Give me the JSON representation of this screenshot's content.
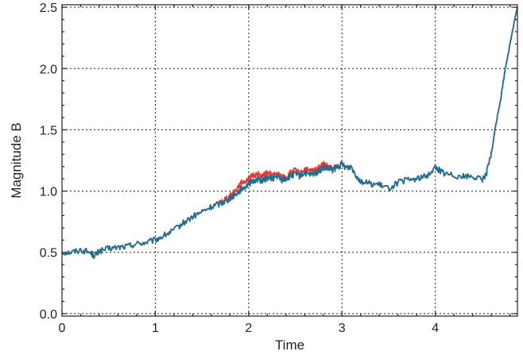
{
  "chart_data": {
    "type": "line",
    "title": "",
    "xlabel": "Time",
    "ylabel": "Magnitude B",
    "xlim": [
      0,
      4.88
    ],
    "ylim": [
      -0.02,
      2.52
    ],
    "x_ticks": [
      0,
      1,
      2,
      3,
      4
    ],
    "x_tick_labels": [
      "0",
      "1",
      "2",
      "3",
      "4"
    ],
    "y_ticks": [
      0.0,
      0.5,
      1.0,
      1.5,
      2.0,
      2.5
    ],
    "y_tick_labels": [
      "0.0",
      "0.5",
      "1.0",
      "1.5",
      "2.0",
      "2.5"
    ],
    "grid": true,
    "legend": "none",
    "series": [
      {
        "color": "#e8362f",
        "x": [
          0,
          0.1,
          0.2,
          0.3,
          0.35,
          0.4,
          0.5,
          0.6,
          0.7,
          0.8,
          0.9,
          1.0,
          1.1,
          1.2,
          1.3,
          1.4,
          1.5,
          1.6,
          1.7,
          1.75,
          1.8,
          1.85,
          1.9,
          1.95,
          2.0,
          2.05,
          2.1,
          2.15,
          2.2,
          2.25,
          2.3,
          2.35,
          2.4,
          2.45,
          2.5,
          2.55,
          2.6,
          2.65,
          2.7,
          2.75,
          2.8,
          2.85,
          2.9,
          2.95,
          3.0,
          3.05,
          3.1,
          3.15,
          3.2,
          3.3,
          3.4,
          3.5,
          3.6,
          3.7,
          3.8,
          3.9,
          4.0,
          4.05,
          4.1,
          4.2,
          4.3,
          4.4,
          4.5,
          4.55,
          4.6,
          4.65,
          4.7,
          4.75,
          4.8,
          4.85,
          4.88
        ],
        "y": [
          0.5,
          0.5,
          0.52,
          0.5,
          0.47,
          0.51,
          0.53,
          0.54,
          0.55,
          0.57,
          0.58,
          0.6,
          0.64,
          0.68,
          0.74,
          0.79,
          0.83,
          0.87,
          0.91,
          0.94,
          0.96,
          1.0,
          1.05,
          1.08,
          1.1,
          1.13,
          1.14,
          1.12,
          1.15,
          1.13,
          1.14,
          1.12,
          1.11,
          1.15,
          1.17,
          1.14,
          1.18,
          1.16,
          1.17,
          1.19,
          1.22,
          1.2,
          1.18,
          1.2,
          1.22,
          1.19,
          1.2,
          1.13,
          1.08,
          1.06,
          1.05,
          1.02,
          1.07,
          1.09,
          1.1,
          1.12,
          1.19,
          1.17,
          1.14,
          1.13,
          1.12,
          1.12,
          1.09,
          1.15,
          1.3,
          1.55,
          1.75,
          2.0,
          2.2,
          2.4,
          2.5
        ]
      },
      {
        "color": "#1f6f93",
        "x": [
          0,
          0.1,
          0.2,
          0.3,
          0.35,
          0.4,
          0.5,
          0.6,
          0.7,
          0.8,
          0.9,
          1.0,
          1.1,
          1.2,
          1.3,
          1.4,
          1.5,
          1.6,
          1.7,
          1.75,
          1.8,
          1.85,
          1.9,
          1.95,
          2.0,
          2.05,
          2.1,
          2.15,
          2.2,
          2.25,
          2.3,
          2.35,
          2.4,
          2.45,
          2.5,
          2.55,
          2.6,
          2.65,
          2.7,
          2.75,
          2.8,
          2.85,
          2.9,
          2.95,
          3.0,
          3.05,
          3.1,
          3.15,
          3.2,
          3.3,
          3.4,
          3.5,
          3.6,
          3.7,
          3.8,
          3.9,
          4.0,
          4.05,
          4.1,
          4.2,
          4.3,
          4.4,
          4.5,
          4.55,
          4.6,
          4.65,
          4.7,
          4.75,
          4.8,
          4.85,
          4.88
        ],
        "y": [
          0.5,
          0.5,
          0.52,
          0.5,
          0.47,
          0.51,
          0.53,
          0.54,
          0.55,
          0.57,
          0.58,
          0.6,
          0.64,
          0.68,
          0.74,
          0.79,
          0.83,
          0.87,
          0.9,
          0.92,
          0.94,
          0.97,
          1.0,
          1.03,
          1.06,
          1.08,
          1.1,
          1.08,
          1.11,
          1.1,
          1.12,
          1.09,
          1.1,
          1.12,
          1.14,
          1.12,
          1.15,
          1.13,
          1.14,
          1.16,
          1.19,
          1.18,
          1.17,
          1.19,
          1.22,
          1.19,
          1.2,
          1.13,
          1.08,
          1.06,
          1.05,
          1.02,
          1.07,
          1.09,
          1.1,
          1.12,
          1.19,
          1.17,
          1.14,
          1.13,
          1.12,
          1.12,
          1.09,
          1.15,
          1.3,
          1.55,
          1.75,
          2.0,
          2.2,
          2.4,
          2.5
        ]
      }
    ]
  }
}
